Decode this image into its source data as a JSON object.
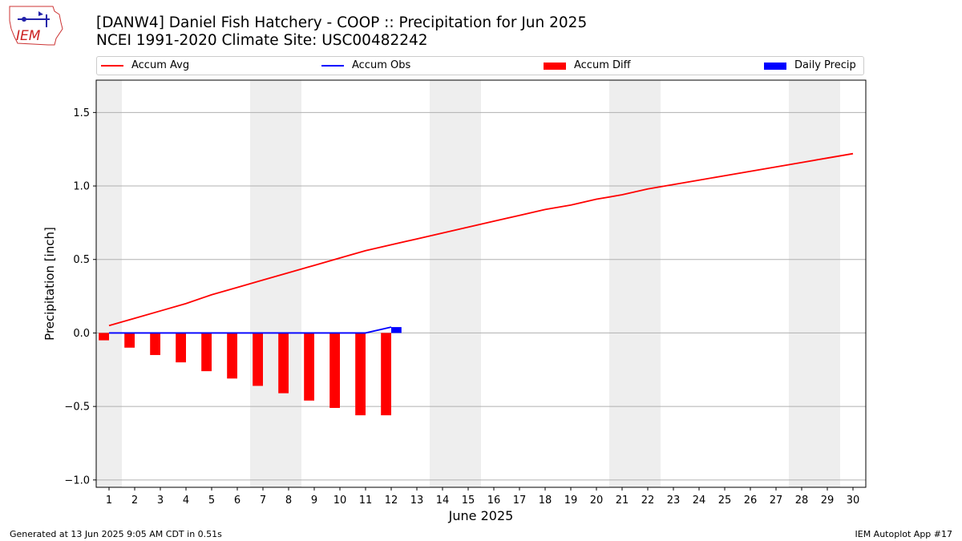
{
  "header": {
    "logo_text": "IEM",
    "title_line1": "[DANW4] Daniel Fish Hatchery - COOP :: Precipitation for Jun 2025",
    "title_line2": "NCEI 1991-2020 Climate Site: USC00482242"
  },
  "legend": [
    {
      "label": "Accum Avg",
      "type": "line",
      "color": "#ff0000"
    },
    {
      "label": "Accum Obs",
      "type": "line",
      "color": "#0000ff"
    },
    {
      "label": "Accum Diff",
      "type": "bar",
      "color": "#ff0000"
    },
    {
      "label": "Daily Precip",
      "type": "bar",
      "color": "#0000ff"
    }
  ],
  "footer": {
    "left": "Generated at 13 Jun 2025 9:05 AM CDT in 0.51s",
    "right": "IEM Autoplot App #17"
  },
  "chart_data": {
    "type": "line",
    "xlabel": "June 2025",
    "ylabel": "Precipitation [inch]",
    "xlim": [
      0.5,
      30.5
    ],
    "ylim": [
      -1.05,
      1.72
    ],
    "x_ticks": [
      1,
      2,
      3,
      4,
      5,
      6,
      7,
      8,
      9,
      10,
      11,
      12,
      13,
      14,
      15,
      16,
      17,
      18,
      19,
      20,
      21,
      22,
      23,
      24,
      25,
      26,
      27,
      28,
      29,
      30
    ],
    "y_ticks": [
      -1.0,
      -0.5,
      0.0,
      0.5,
      1.0,
      1.5
    ],
    "y_tick_labels": [
      "−1.0",
      "−0.5",
      "0.0",
      "0.5",
      "1.0",
      "1.5"
    ],
    "weekend_bands": [
      [
        0.5,
        1.5
      ],
      [
        6.5,
        8.5
      ],
      [
        13.5,
        15.5
      ],
      [
        20.5,
        22.5
      ],
      [
        27.5,
        29.5
      ]
    ],
    "grid": "y",
    "legend_position": "top",
    "series": [
      {
        "name": "Accum Avg",
        "kind": "line",
        "color": "#ff0000",
        "x": [
          1,
          2,
          3,
          4,
          5,
          6,
          7,
          8,
          9,
          10,
          11,
          12,
          13,
          14,
          15,
          16,
          17,
          18,
          19,
          20,
          21,
          22,
          23,
          24,
          25,
          26,
          27,
          28,
          29,
          30
        ],
        "values": [
          0.05,
          0.1,
          0.15,
          0.2,
          0.26,
          0.31,
          0.36,
          0.41,
          0.46,
          0.51,
          0.56,
          0.6,
          0.64,
          0.68,
          0.72,
          0.76,
          0.8,
          0.84,
          0.87,
          0.91,
          0.94,
          0.98,
          1.01,
          1.04,
          1.07,
          1.1,
          1.13,
          1.16,
          1.19,
          1.22
        ]
      },
      {
        "name": "Accum Obs",
        "kind": "line",
        "color": "#0000ff",
        "x": [
          1,
          2,
          3,
          4,
          5,
          6,
          7,
          8,
          9,
          10,
          11,
          12
        ],
        "values": [
          0,
          0,
          0,
          0,
          0,
          0,
          0,
          0,
          0,
          0,
          0,
          0.04
        ]
      },
      {
        "name": "Accum Diff",
        "kind": "bar",
        "color": "#ff0000",
        "x": [
          1,
          2,
          3,
          4,
          5,
          6,
          7,
          8,
          9,
          10,
          11,
          12
        ],
        "values": [
          -0.05,
          -0.1,
          -0.15,
          -0.2,
          -0.26,
          -0.31,
          -0.36,
          -0.41,
          -0.46,
          -0.51,
          -0.56,
          -0.56
        ]
      },
      {
        "name": "Daily Precip",
        "kind": "bar",
        "color": "#0000ff",
        "x": [
          12
        ],
        "values": [
          0.04
        ]
      }
    ]
  }
}
